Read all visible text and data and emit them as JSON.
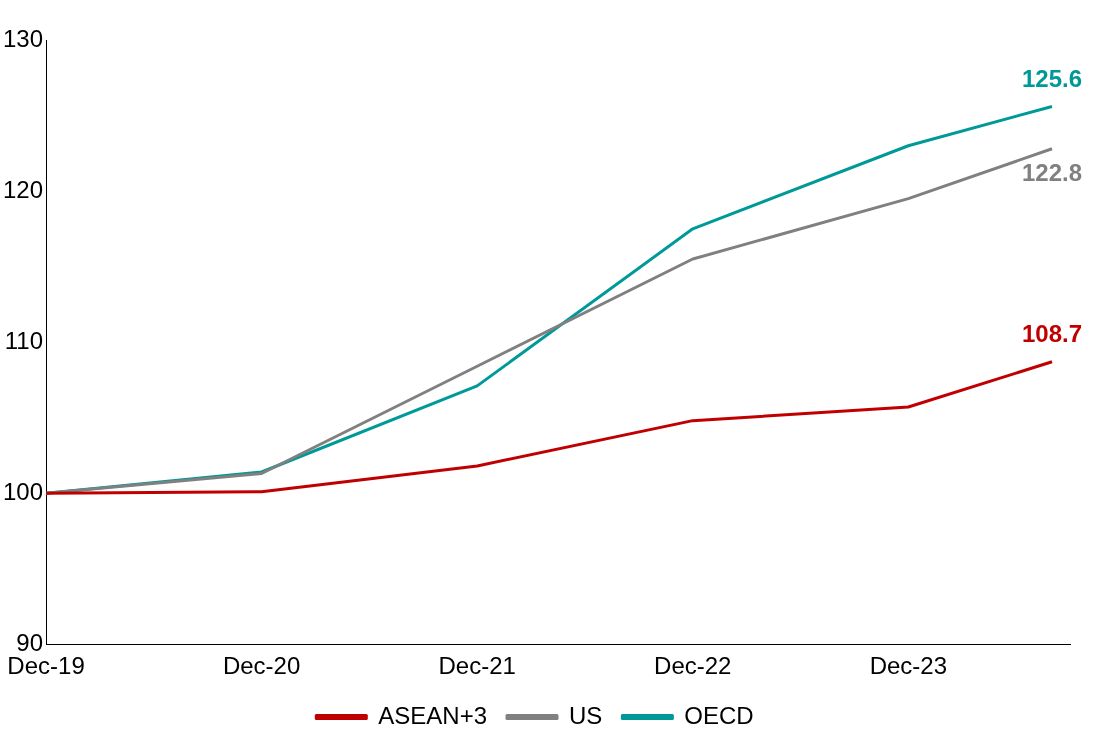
{
  "chart_data": {
    "type": "line",
    "x": [
      "2019-12",
      "2020-12",
      "2021-12",
      "2022-12",
      "2023-12",
      "2024-08"
    ],
    "xlim": [
      "2019-12",
      "2024-09"
    ],
    "xticks": [
      {
        "value": "2019-12",
        "label": "Dec-19"
      },
      {
        "value": "2020-12",
        "label": "Dec-20"
      },
      {
        "value": "2021-12",
        "label": "Dec-21"
      },
      {
        "value": "2022-12",
        "label": "Dec-22"
      },
      {
        "value": "2023-12",
        "label": "Dec-23"
      }
    ],
    "ylim": [
      90,
      130
    ],
    "yticks": [
      90,
      100,
      110,
      120,
      130
    ],
    "series": [
      {
        "name": "ASEAN+3",
        "color": "#c00000",
        "values": [
          100,
          100.1,
          101.8,
          104.8,
          105.7,
          108.7
        ],
        "value_labels": [
          null,
          null,
          null,
          null,
          null,
          "108.7"
        ]
      },
      {
        "name": "US",
        "color": "#808080",
        "values": [
          100,
          101.3,
          108.4,
          115.5,
          119.5,
          122.8
        ],
        "value_labels": [
          null,
          null,
          null,
          null,
          null,
          "122.8"
        ]
      },
      {
        "name": "OECD",
        "color": "#009999",
        "values": [
          100,
          101.4,
          107.1,
          117.5,
          123.0,
          125.6
        ],
        "value_labels": [
          null,
          null,
          null,
          null,
          null,
          "125.6"
        ]
      }
    ],
    "grid": false,
    "legend": "bottom",
    "marker": "none",
    "line_style": "solid"
  }
}
